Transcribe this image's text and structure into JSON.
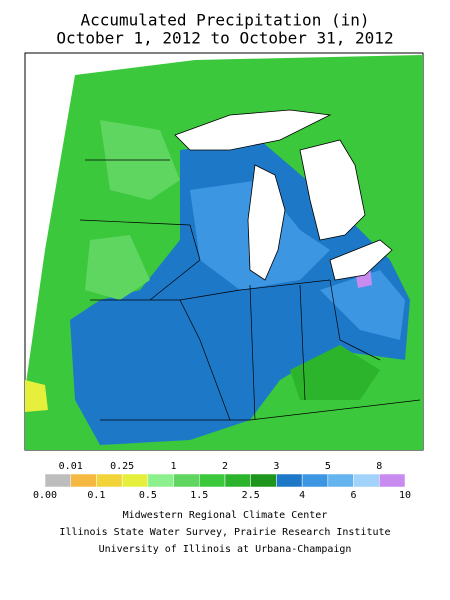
{
  "title": {
    "line1": "Accumulated Precipitation (in)",
    "line2": "October 1, 2012 to October 31, 2012"
  },
  "legend": {
    "top_labels": [
      "0.01",
      "0.25",
      "1",
      "2",
      "3",
      "5",
      "8"
    ],
    "bottom_labels": [
      "0.00",
      "0.1",
      "0.5",
      "1.5",
      "2.5",
      "4",
      "6",
      "10"
    ],
    "colors": [
      "#bdbdbd",
      "#f5b942",
      "#f2d43a",
      "#e6f03c",
      "#8cf08c",
      "#5fd65f",
      "#3cc83c",
      "#2db42d",
      "#1e961e",
      "#1e78c8",
      "#3c96e1",
      "#64b4f0",
      "#a0d2fa",
      "#c88cf0"
    ]
  },
  "credits": [
    "Midwestern Regional Climate Center",
    "Illinois State Water Survey, Prairie Research Institute",
    "University of Illinois at Urbana-Champaign"
  ]
}
